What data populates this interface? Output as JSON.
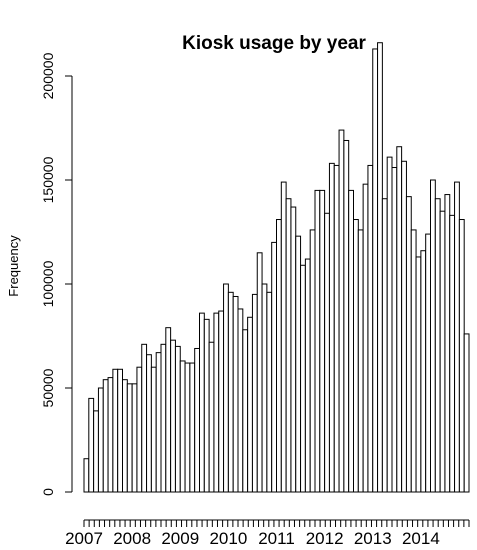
{
  "chart_data": {
    "type": "bar",
    "title": "Kiosk usage by year",
    "xlabel": "",
    "ylabel": "Frequency",
    "ylim": [
      0,
      215000
    ],
    "yticks": [
      0,
      50000,
      100000,
      150000,
      200000
    ],
    "x_tick_labels": [
      "2007",
      "2008",
      "2009",
      "2010",
      "2011",
      "2012",
      "2013",
      "2014"
    ],
    "x_label_bins": [
      0,
      10,
      20,
      30,
      40,
      50,
      60,
      70
    ],
    "x_minor_ticks": 76,
    "bin_width": "month",
    "values": [
      16000,
      45000,
      39000,
      50000,
      54000,
      55000,
      59000,
      59000,
      54000,
      52000,
      52000,
      60000,
      71000,
      66000,
      60000,
      67000,
      71000,
      79000,
      73000,
      70000,
      63000,
      62000,
      62000,
      69000,
      86000,
      83000,
      72000,
      86000,
      87000,
      100000,
      96000,
      94000,
      88000,
      78000,
      84000,
      95000,
      115000,
      100000,
      96000,
      120000,
      131000,
      149000,
      141000,
      137000,
      123000,
      109000,
      112000,
      126000,
      145000,
      145000,
      134000,
      158000,
      157000,
      174000,
      169000,
      145000,
      131000,
      126000,
      148000,
      157000,
      213000,
      216000,
      141000,
      161000,
      156000,
      166000,
      159000,
      142000,
      126000,
      113000,
      116000,
      124000,
      150000,
      141000,
      135000,
      143000,
      133000,
      149000,
      131000,
      76000
    ]
  }
}
